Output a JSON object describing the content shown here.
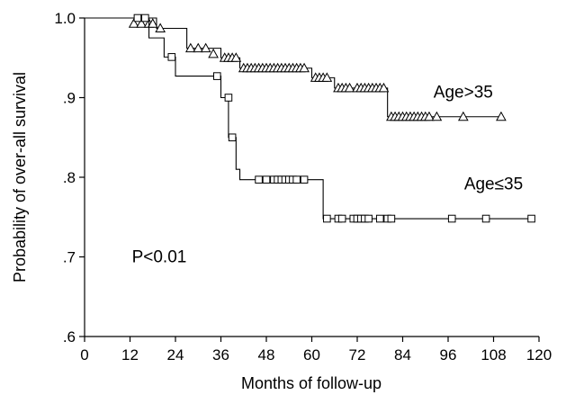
{
  "chart_data": {
    "type": "line",
    "title": "",
    "xlabel": "Months of follow-up",
    "ylabel": "Probability of over-all survival",
    "xlim": [
      0,
      120
    ],
    "ylim": [
      0.6,
      1.0
    ],
    "x_ticks": [
      0,
      12,
      24,
      36,
      48,
      60,
      72,
      84,
      96,
      108,
      120
    ],
    "x_tick_labels": [
      "0",
      "12",
      "24",
      "36",
      "48",
      "60",
      "72",
      "84",
      "96",
      "108",
      "120"
    ],
    "y_ticks": [
      0.6,
      0.7,
      0.8,
      0.9,
      1.0
    ],
    "y_tick_labels": [
      ".6",
      ".7",
      ".8",
      ".9",
      "1.0"
    ],
    "grid": false,
    "annotation": "P<0.01",
    "series": [
      {
        "name": "Age>35",
        "marker": "triangle",
        "steps": [
          [
            0,
            1.0
          ],
          [
            19,
            0.987
          ],
          [
            27,
            0.962
          ],
          [
            36,
            0.95
          ],
          [
            41,
            0.937
          ],
          [
            46,
            0.937
          ],
          [
            60,
            0.925
          ],
          [
            66,
            0.912
          ],
          [
            80,
            0.876
          ],
          [
            110,
            0.876
          ]
        ],
        "censored": [
          [
            13,
            0.993
          ],
          [
            15,
            0.993
          ],
          [
            17,
            0.993
          ],
          [
            18,
            0.993
          ],
          [
            20,
            0.987
          ],
          [
            28,
            0.962
          ],
          [
            30,
            0.962
          ],
          [
            32,
            0.962
          ],
          [
            34,
            0.955
          ],
          [
            37,
            0.95
          ],
          [
            38,
            0.95
          ],
          [
            39,
            0.95
          ],
          [
            40,
            0.95
          ],
          [
            42,
            0.937
          ],
          [
            43,
            0.937
          ],
          [
            44,
            0.937
          ],
          [
            45,
            0.937
          ],
          [
            46,
            0.937
          ],
          [
            47,
            0.937
          ],
          [
            48,
            0.937
          ],
          [
            49,
            0.937
          ],
          [
            50,
            0.937
          ],
          [
            51,
            0.937
          ],
          [
            52,
            0.937
          ],
          [
            53,
            0.937
          ],
          [
            54,
            0.937
          ],
          [
            55,
            0.937
          ],
          [
            56,
            0.937
          ],
          [
            57,
            0.937
          ],
          [
            58,
            0.937
          ],
          [
            61,
            0.925
          ],
          [
            62,
            0.925
          ],
          [
            63,
            0.925
          ],
          [
            64,
            0.925
          ],
          [
            67,
            0.912
          ],
          [
            68,
            0.912
          ],
          [
            69,
            0.912
          ],
          [
            70,
            0.912
          ],
          [
            72,
            0.912
          ],
          [
            73,
            0.912
          ],
          [
            74,
            0.912
          ],
          [
            75,
            0.912
          ],
          [
            76,
            0.912
          ],
          [
            77,
            0.912
          ],
          [
            78,
            0.912
          ],
          [
            79,
            0.912
          ],
          [
            81,
            0.876
          ],
          [
            82,
            0.876
          ],
          [
            83,
            0.876
          ],
          [
            84,
            0.876
          ],
          [
            85,
            0.876
          ],
          [
            86,
            0.876
          ],
          [
            87,
            0.876
          ],
          [
            88,
            0.876
          ],
          [
            89,
            0.876
          ],
          [
            90,
            0.876
          ],
          [
            91,
            0.876
          ],
          [
            93,
            0.876
          ],
          [
            100,
            0.876
          ],
          [
            110,
            0.876
          ]
        ]
      },
      {
        "name": "Age≤35",
        "marker": "square",
        "steps": [
          [
            0,
            1.0
          ],
          [
            17,
            0.975
          ],
          [
            21,
            0.951
          ],
          [
            24,
            0.927
          ],
          [
            36,
            0.9
          ],
          [
            38,
            0.85
          ],
          [
            40,
            0.81
          ],
          [
            41,
            0.797
          ],
          [
            63,
            0.748
          ],
          [
            118,
            0.748
          ]
        ],
        "censored": [
          [
            14,
            1.0
          ],
          [
            16,
            1.0
          ],
          [
            23,
            0.951
          ],
          [
            35,
            0.927
          ],
          [
            38,
            0.9
          ],
          [
            39,
            0.85
          ],
          [
            46,
            0.797
          ],
          [
            48,
            0.797
          ],
          [
            50,
            0.797
          ],
          [
            51,
            0.797
          ],
          [
            52,
            0.797
          ],
          [
            53,
            0.797
          ],
          [
            54,
            0.797
          ],
          [
            55,
            0.797
          ],
          [
            56,
            0.797
          ],
          [
            58,
            0.797
          ],
          [
            64,
            0.748
          ],
          [
            67,
            0.748
          ],
          [
            68,
            0.748
          ],
          [
            71,
            0.748
          ],
          [
            72,
            0.748
          ],
          [
            73,
            0.748
          ],
          [
            74,
            0.748
          ],
          [
            75,
            0.748
          ],
          [
            78,
            0.748
          ],
          [
            80,
            0.748
          ],
          [
            81,
            0.748
          ],
          [
            97,
            0.748
          ],
          [
            106,
            0.748
          ],
          [
            118,
            0.748
          ]
        ]
      }
    ],
    "series_labels": [
      {
        "series": "Age>35",
        "text": "Age>35",
        "at": [
          100,
          0.9
        ]
      },
      {
        "series": "Age≤35",
        "text": "Age≤35",
        "at": [
          108,
          0.785
        ]
      }
    ],
    "annotation_at": [
      12.5,
      0.7
    ]
  }
}
